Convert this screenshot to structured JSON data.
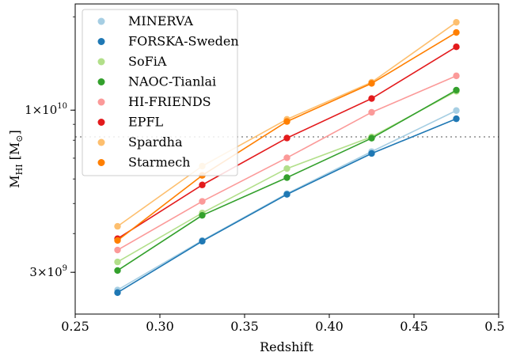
{
  "chart_data": {
    "type": "line",
    "title": "",
    "xlabel": "Redshift",
    "ylabel_main": "M",
    "ylabel_sub": "HI",
    "ylabel_unit_open": " [M",
    "ylabel_unit_sub": "⊙",
    "ylabel_unit_close": "]",
    "x": [
      0.275,
      0.325,
      0.375,
      0.425,
      0.475
    ],
    "xlim": [
      0.25,
      0.5
    ],
    "ylim": [
      2200000000,
      22000000000
    ],
    "yscale": "log",
    "grid": false,
    "legend_position": "top-left",
    "xticks": [
      {
        "value": 0.25,
        "label": "0.25"
      },
      {
        "value": 0.3,
        "label": "0.30"
      },
      {
        "value": 0.35,
        "label": "0.35"
      },
      {
        "value": 0.4,
        "label": "0.40"
      },
      {
        "value": 0.45,
        "label": "0.45"
      },
      {
        "value": 0.5,
        "label": "0.50"
      }
    ],
    "yticks": [
      {
        "value": 3000000000,
        "mant": "3×10",
        "exp": "9"
      },
      {
        "value": 10000000000,
        "mant": "1×10",
        "exp": "10"
      }
    ],
    "reference_line": {
      "y": 8200000000,
      "style": "dotted",
      "color": "#a9a9a9"
    },
    "series": [
      {
        "name": "MINERVA",
        "color": "#a6cee3",
        "values": [
          2630000000,
          3800000000,
          5380000000,
          7350000000,
          9970000000
        ]
      },
      {
        "name": "FORSKA-Sweden",
        "color": "#1f78b4",
        "values": [
          2580000000,
          3780000000,
          5350000000,
          7250000000,
          9380000000
        ]
      },
      {
        "name": "SoFiA",
        "color": "#b2df8a",
        "values": [
          3240000000,
          4660000000,
          6480000000,
          8200000000,
          11500000000
        ]
      },
      {
        "name": "NAOC-Tianlai",
        "color": "#33a02c",
        "values": [
          3040000000,
          4580000000,
          6060000000,
          8120000000,
          11600000000
        ]
      },
      {
        "name": "HI-FRIENDS",
        "color": "#fb9a99",
        "values": [
          3540000000,
          5080000000,
          7020000000,
          9840000000,
          12900000000
        ]
      },
      {
        "name": "EPFL",
        "color": "#e31a1c",
        "values": [
          3850000000,
          5740000000,
          8130000000,
          10900000000,
          16000000000
        ]
      },
      {
        "name": "Spardha",
        "color": "#fdbf6f",
        "values": [
          4220000000,
          6600000000,
          9340000000,
          12300000000,
          19200000000
        ]
      },
      {
        "name": "Starmech",
        "color": "#ff7f00",
        "values": [
          3800000000,
          6160000000,
          9190000000,
          12200000000,
          17800000000
        ]
      }
    ]
  }
}
